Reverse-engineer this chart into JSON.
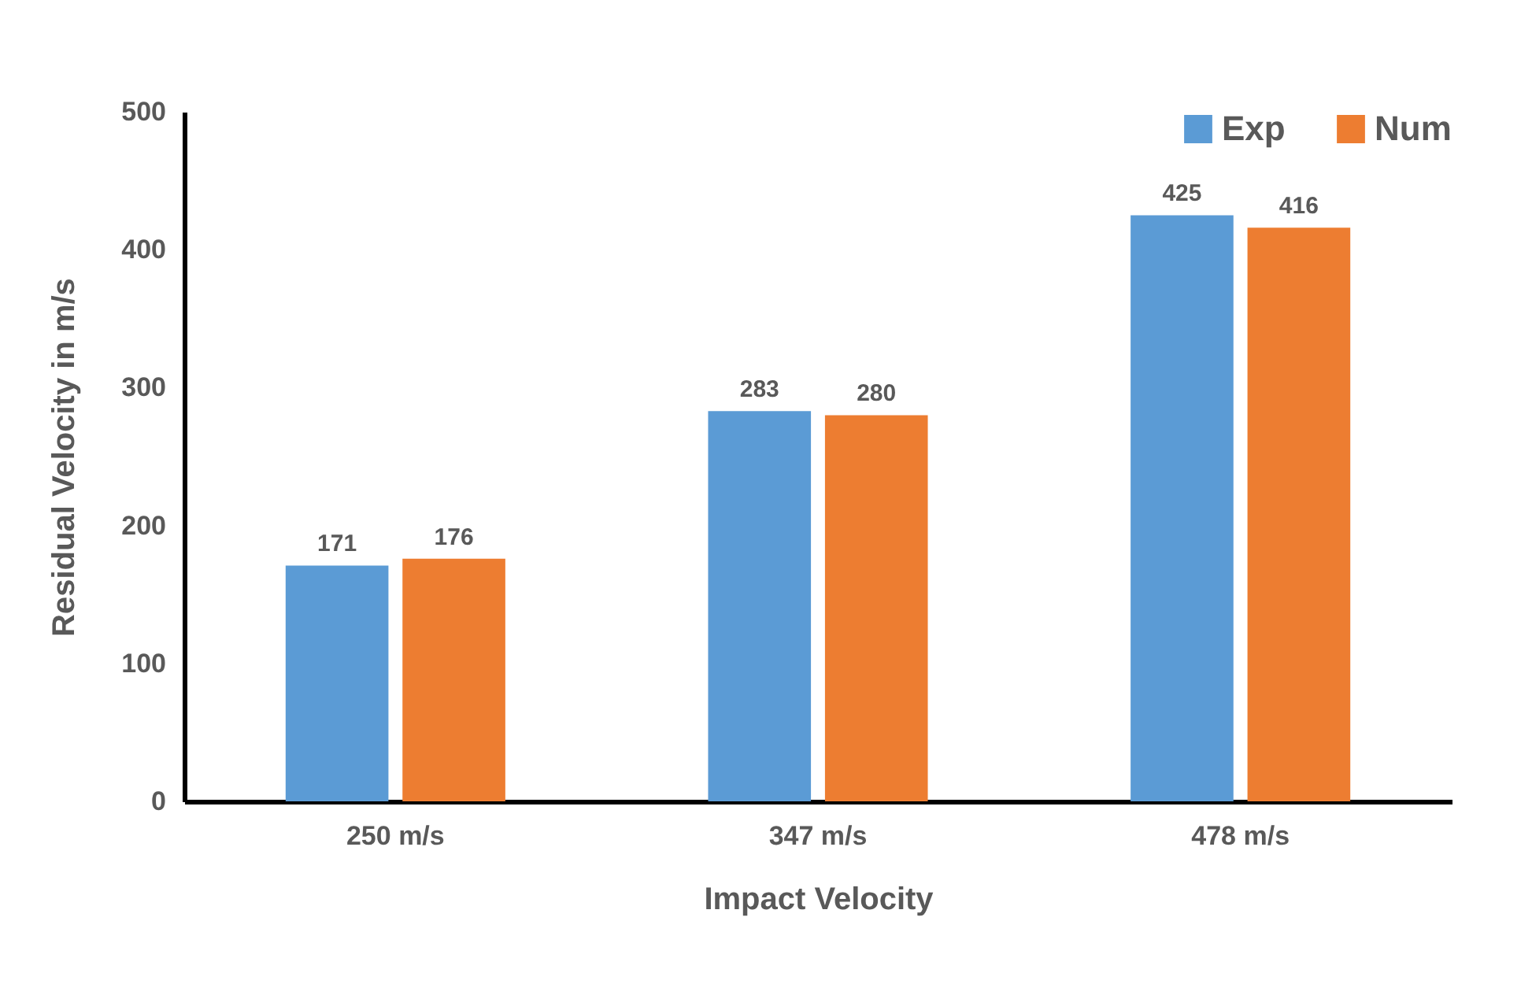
{
  "chart_data": {
    "type": "bar",
    "xlabel": "Impact Velocity",
    "ylabel": "Residual Velocity in m/s",
    "categories": [
      "250 m/s",
      "347 m/s",
      "478 m/s"
    ],
    "series": [
      {
        "name": "Exp",
        "color": "#5b9bd5",
        "values": [
          171,
          283,
          425
        ]
      },
      {
        "name": "Num",
        "color": "#ed7d31",
        "values": [
          176,
          280,
          416
        ]
      }
    ],
    "ylim": [
      0,
      500
    ],
    "yticks": [
      0,
      100,
      200,
      300,
      400,
      500
    ],
    "grid": false,
    "legend": "top right",
    "data_labels": true
  }
}
